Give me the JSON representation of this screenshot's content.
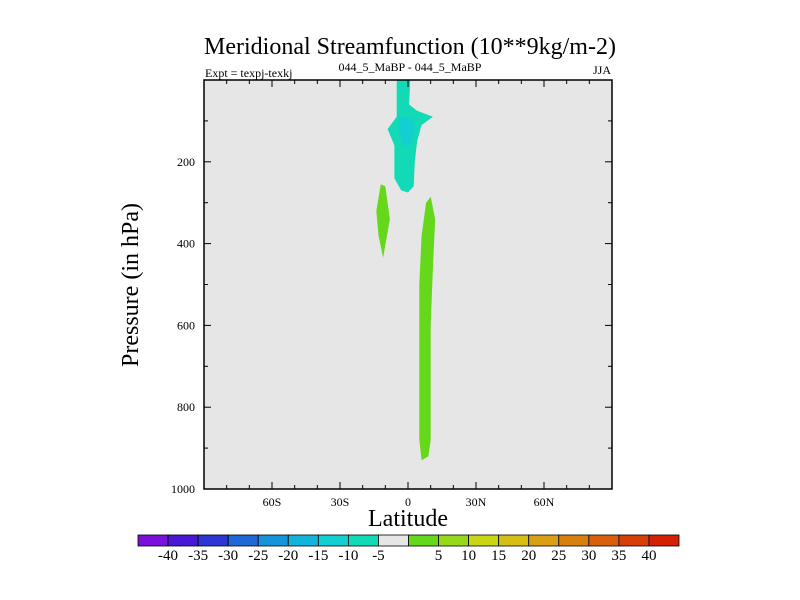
{
  "chart_data": {
    "type": "contour",
    "title": "Meridional Streamfunction (10**9kg/m-2)",
    "subtitle_left": "Expt = texpj-texkj",
    "subtitle_center": "044_5_MaBP - 044_5_MaBP",
    "subtitle_right": "JJA",
    "xlabel": "Latitude",
    "ylabel": "Pressure (in hPa)",
    "xlim": [
      -90,
      90
    ],
    "ylim": [
      1000,
      0
    ],
    "xticks": [
      {
        "value": -60,
        "label": "60S"
      },
      {
        "value": -30,
        "label": "30S"
      },
      {
        "value": 0,
        "label": "0"
      },
      {
        "value": 30,
        "label": "30N"
      },
      {
        "value": 60,
        "label": "60N"
      }
    ],
    "yticks": [
      {
        "value": 200,
        "label": "200"
      },
      {
        "value": 400,
        "label": "400"
      },
      {
        "value": 600,
        "label": "600"
      },
      {
        "value": 800,
        "label": "800"
      },
      {
        "value": 1000,
        "label": "1000"
      }
    ],
    "plot_background": "#e6e6e6",
    "colorbar": {
      "colors": [
        "#7a10dc",
        "#4a18d4",
        "#2c36d2",
        "#1f68d8",
        "#1594dc",
        "#13b4dc",
        "#14cfd2",
        "#12d9b6",
        "#e6e6e6",
        "#66d81c",
        "#98d81a",
        "#c8d616",
        "#d6be14",
        "#d8a012",
        "#d8800e",
        "#d8600c",
        "#d64008",
        "#d42004"
      ],
      "labels": [
        "-40",
        "-35",
        "-30",
        "-25",
        "-20",
        "-15",
        "-10",
        "-5",
        "5",
        "10",
        "15",
        "20",
        "25",
        "30",
        "35",
        "40"
      ]
    },
    "contours": [
      {
        "name": "upper-negative-cell",
        "level": -5,
        "color": "#12d9b6",
        "points": [
          [
            -5,
            0
          ],
          [
            1,
            0
          ],
          [
            0.5,
            60
          ],
          [
            4,
            75
          ],
          [
            11,
            90
          ],
          [
            6,
            110
          ],
          [
            4,
            150
          ],
          [
            3,
            200
          ],
          [
            2.5,
            260
          ],
          [
            0,
            275
          ],
          [
            -3,
            270
          ],
          [
            -6,
            240
          ],
          [
            -6,
            160
          ],
          [
            -9,
            120
          ],
          [
            -5,
            90
          ],
          [
            -5,
            40
          ]
        ]
      },
      {
        "name": "upper-negative-core",
        "level": -10,
        "color": "#14cfd2",
        "points": [
          [
            -4,
            90
          ],
          [
            2,
            95
          ],
          [
            3,
            125
          ],
          [
            1,
            160
          ],
          [
            -2,
            160
          ],
          [
            -4,
            125
          ]
        ]
      },
      {
        "name": "mid-positive-cell",
        "level": 5,
        "color": "#66d81c",
        "points": [
          [
            -12,
            255
          ],
          [
            -10,
            260
          ],
          [
            -8,
            340
          ],
          [
            -11,
            435
          ],
          [
            -13,
            380
          ],
          [
            -14,
            320
          ]
        ]
      },
      {
        "name": "deep-positive-cell",
        "level": 5,
        "color": "#66d81c",
        "points": [
          [
            10,
            285
          ],
          [
            12,
            340
          ],
          [
            11,
            460
          ],
          [
            10,
            600
          ],
          [
            10,
            780
          ],
          [
            10,
            880
          ],
          [
            9,
            920
          ],
          [
            6,
            930
          ],
          [
            5,
            880
          ],
          [
            5,
            700
          ],
          [
            5,
            500
          ],
          [
            6,
            380
          ],
          [
            8,
            300
          ]
        ]
      }
    ]
  }
}
